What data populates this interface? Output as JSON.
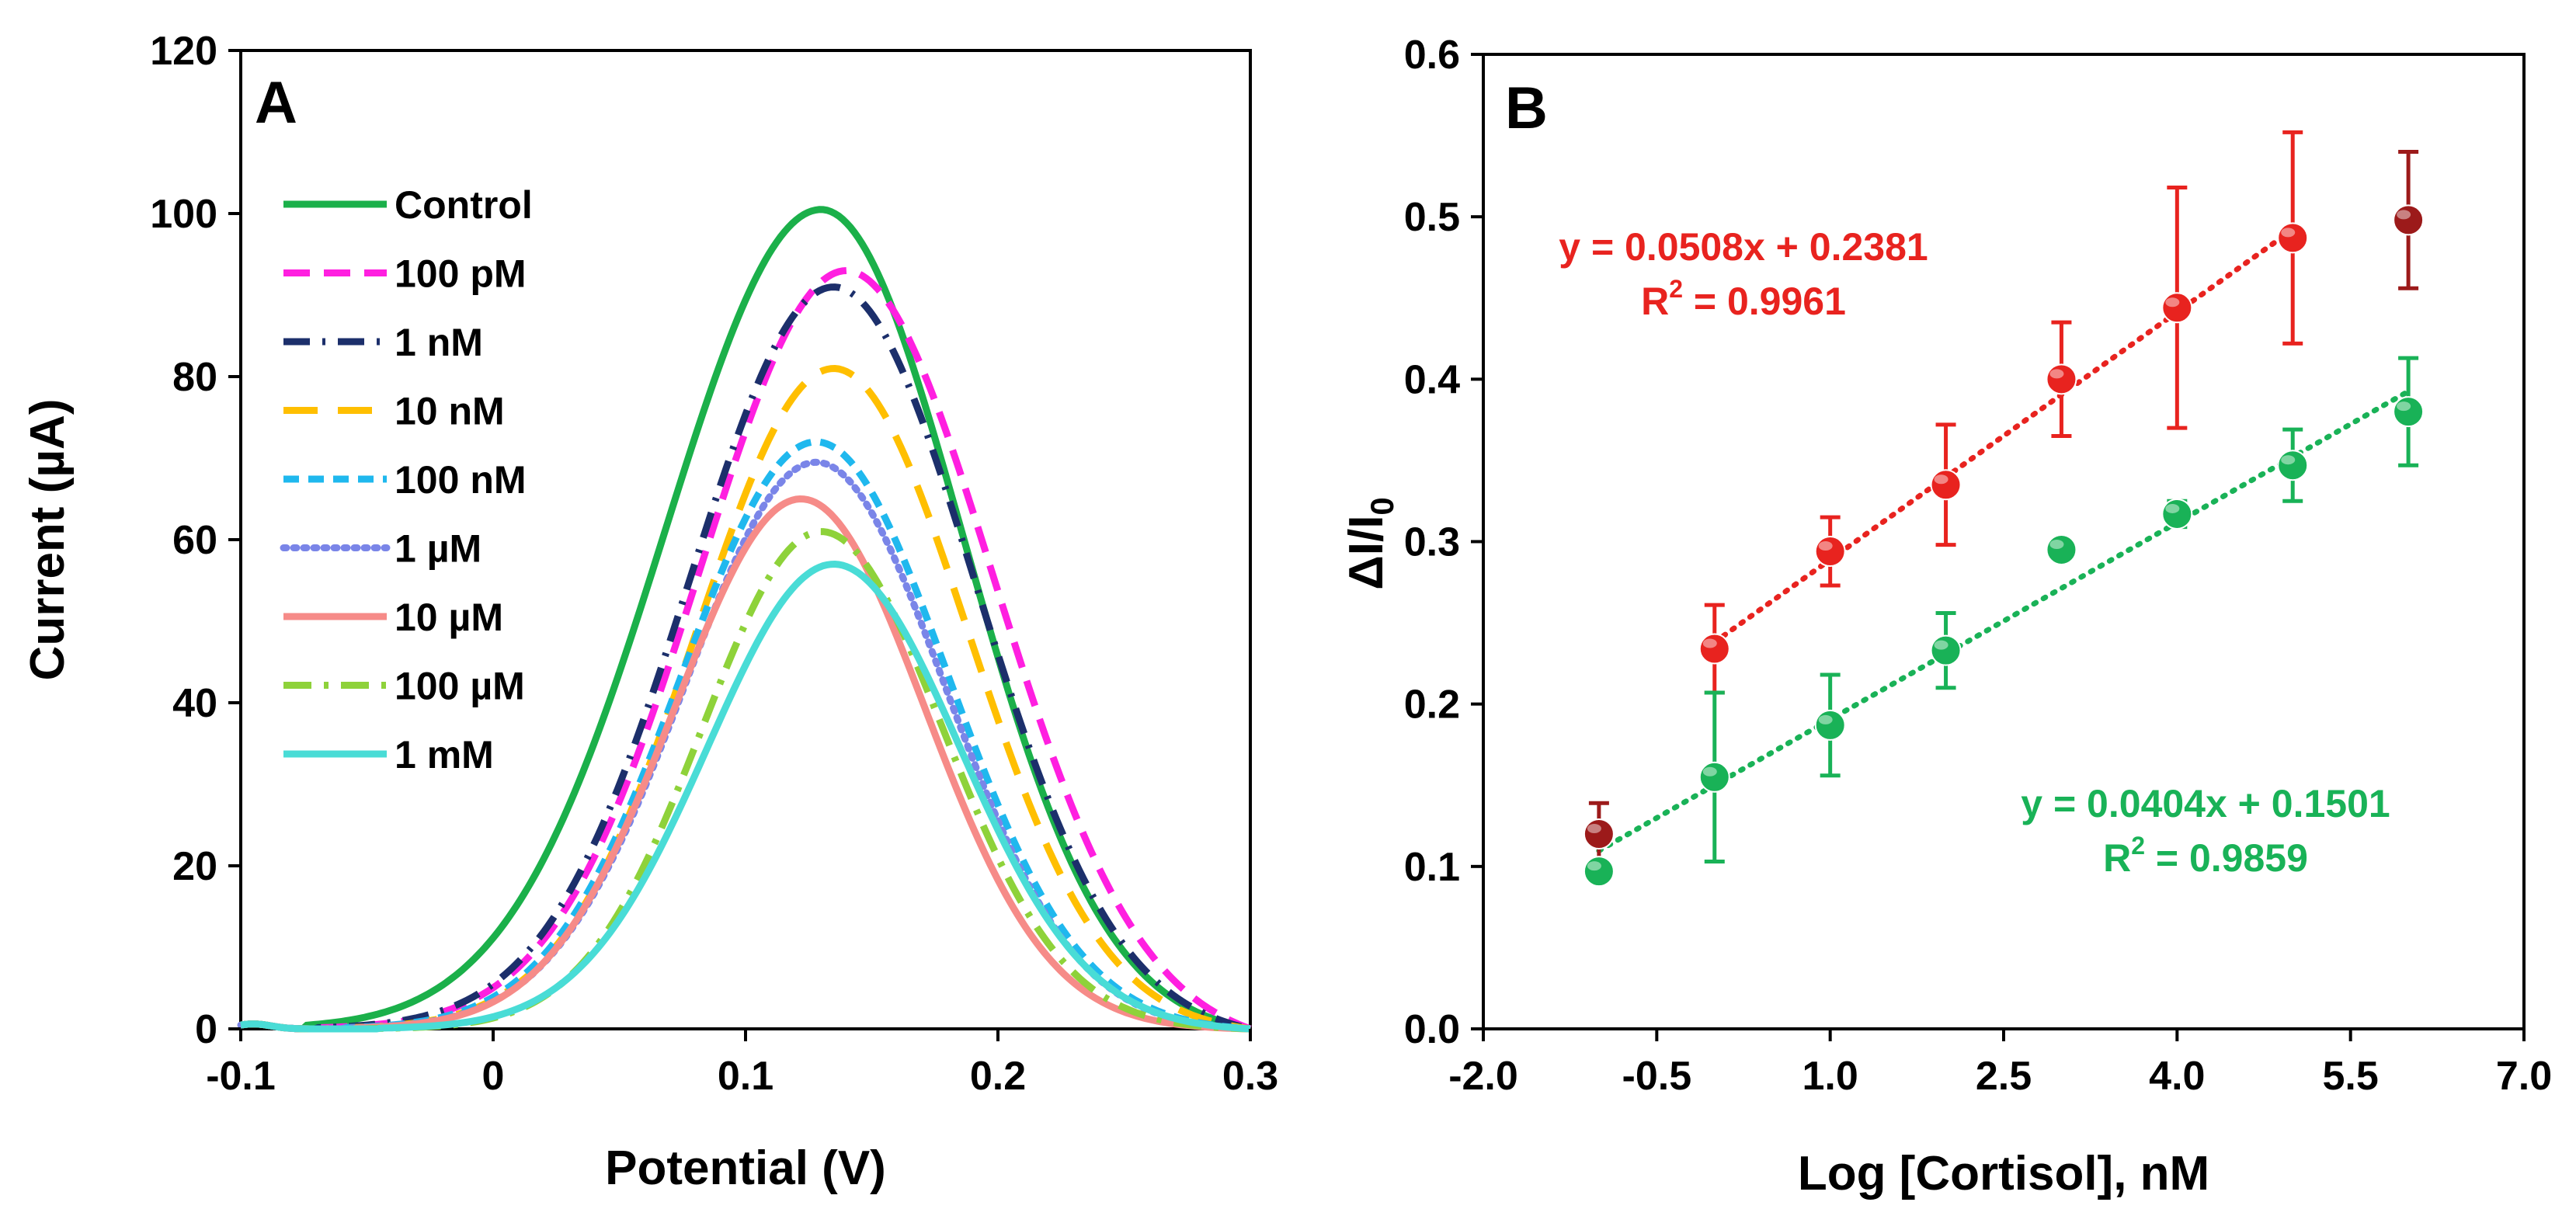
{
  "chart_data": [
    {
      "panel": "A",
      "type": "line",
      "xlabel": "Potential (V)",
      "ylabel": "Current (µA)",
      "xlim": [
        -0.1,
        0.3
      ],
      "ylim": [
        0,
        120
      ],
      "xticks": [
        -0.1,
        0,
        0.1,
        0.2,
        0.3
      ],
      "xtick_labels": [
        "-0.1",
        "0",
        "0.1",
        "0.2",
        "0.3"
      ],
      "yticks": [
        0,
        20,
        40,
        60,
        80,
        100,
        120
      ],
      "ytick_labels": [
        "0",
        "20",
        "40",
        "60",
        "80",
        "100",
        "120"
      ],
      "grid": false,
      "legend_position": "top-left",
      "series": [
        {
          "name": "Control",
          "color": "#1bb04a",
          "dash": "solid",
          "peak_x": 0.13,
          "peak_y": 100.5,
          "sigma_left": 0.062,
          "sigma_right": 0.056,
          "onset": -0.075
        },
        {
          "name": "100 pM",
          "color": "#ff1fe0",
          "dash": "long-dash",
          "peak_x": 0.14,
          "peak_y": 93,
          "sigma_left": 0.058,
          "sigma_right": 0.058,
          "onset": -0.07
        },
        {
          "name": "1 nM",
          "color": "#1c2f6b",
          "dash": "dash-dot",
          "peak_x": 0.135,
          "peak_y": 91,
          "sigma_left": 0.057,
          "sigma_right": 0.056,
          "onset": -0.07
        },
        {
          "name": "10 nM",
          "color": "#ffbf00",
          "dash": "long-dash-gap",
          "peak_x": 0.135,
          "peak_y": 81,
          "sigma_left": 0.054,
          "sigma_right": 0.053,
          "onset": -0.065
        },
        {
          "name": "100 nM",
          "color": "#1fb8ee",
          "dash": "short-dash",
          "peak_x": 0.128,
          "peak_y": 72,
          "sigma_left": 0.053,
          "sigma_right": 0.052,
          "onset": -0.06
        },
        {
          "name": "1 µM",
          "color": "#7a85e8",
          "dash": "dotted",
          "peak_x": 0.128,
          "peak_y": 69.5,
          "sigma_left": 0.052,
          "sigma_right": 0.051,
          "onset": -0.06
        },
        {
          "name": "10 µM",
          "color": "#f68b88",
          "dash": "solid",
          "peak_x": 0.122,
          "peak_y": 65,
          "sigma_left": 0.05,
          "sigma_right": 0.049,
          "onset": -0.055
        },
        {
          "name": "100 µM",
          "color": "#8ed23a",
          "dash": "long-dash-dot",
          "peak_x": 0.13,
          "peak_y": 61,
          "sigma_left": 0.047,
          "sigma_right": 0.048,
          "onset": -0.05
        },
        {
          "name": "1 mM",
          "color": "#49dcd6",
          "dash": "solid",
          "peak_x": 0.135,
          "peak_y": 57,
          "sigma_left": 0.05,
          "sigma_right": 0.05,
          "onset": -0.045
        }
      ]
    },
    {
      "panel": "B",
      "type": "scatter",
      "xlabel": "Log [Cortisol], nM",
      "ylabel": "ΔI/I",
      "ylabel_subscript": "0",
      "xlim": [
        -2.0,
        7.0
      ],
      "ylim": [
        0.0,
        0.6
      ],
      "xticks": [
        -2.0,
        -0.5,
        1.0,
        2.5,
        4.0,
        5.5,
        7.0
      ],
      "xtick_labels": [
        "-2.0",
        "-0.5",
        "1.0",
        "2.5",
        "4.0",
        "5.5",
        "7.0"
      ],
      "yticks": [
        0.0,
        0.1,
        0.2,
        0.3,
        0.4,
        0.5,
        0.6
      ],
      "ytick_labels": [
        "0.0",
        "0.1",
        "0.2",
        "0.3",
        "0.4",
        "0.5",
        "0.6"
      ],
      "grid": false,
      "series": [
        {
          "name": "red",
          "color": "#e8231f",
          "x": [
            -1,
            0,
            1,
            2,
            3,
            4,
            5,
            6
          ],
          "y": [
            0.12,
            0.234,
            0.294,
            0.335,
            0.4,
            0.444,
            0.487,
            0.498
          ],
          "err": [
            0.019,
            0.027,
            0.021,
            0.037,
            0.035,
            0.074,
            0.065,
            0.042
          ],
          "excluded_color": "#9c1a1a",
          "excluded_points": [
            0,
            7
          ],
          "fit": {
            "slope": 0.0508,
            "intercept": 0.2381,
            "x_range": [
              0,
              5
            ]
          },
          "equation": "y = 0.0508x + 0.2381",
          "r2_label": "R",
          "r2_value": " = 0.9961"
        },
        {
          "name": "green",
          "color": "#19b257",
          "x": [
            -1,
            0,
            1,
            2,
            3,
            4,
            5,
            6
          ],
          "y": [
            0.097,
            0.155,
            0.187,
            0.233,
            0.295,
            0.317,
            0.347,
            0.38
          ],
          "err": [
            0.0,
            0.052,
            0.031,
            0.023,
            0.0,
            0.008,
            0.022,
            0.033
          ],
          "fit": {
            "slope": 0.0404,
            "intercept": 0.1501,
            "x_range": [
              -1,
              6
            ]
          },
          "equation": "y = 0.0404x + 0.1501",
          "r2_label": "R",
          "r2_value": " = 0.9859"
        }
      ]
    }
  ]
}
